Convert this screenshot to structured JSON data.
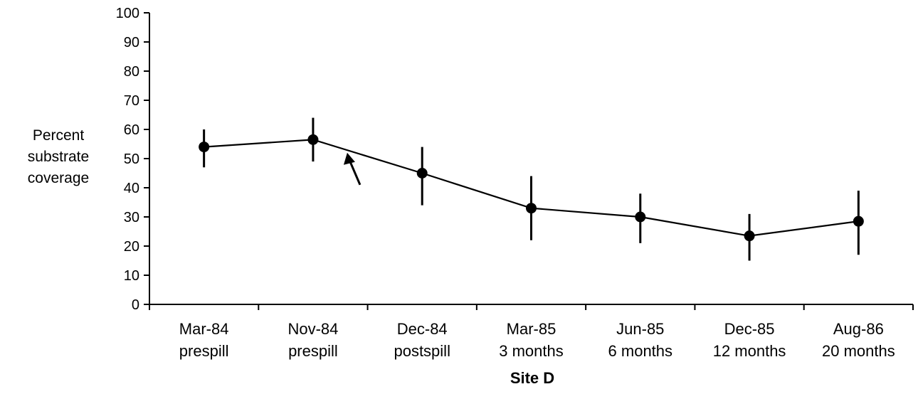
{
  "chart_data": {
    "type": "line",
    "title": "",
    "ylabel_lines": [
      "Percent",
      "substrate",
      "coverage"
    ],
    "xlabel": "Site  D",
    "ylim": [
      0,
      100
    ],
    "yticks": [
      0,
      10,
      20,
      30,
      40,
      50,
      60,
      70,
      80,
      90,
      100
    ],
    "categories": [
      {
        "line1": "Mar-84",
        "line2": "prespill"
      },
      {
        "line1": "Nov-84",
        "line2": "prespill"
      },
      {
        "line1": "Dec-84",
        "line2": "postspill"
      },
      {
        "line1": "Mar-85",
        "line2": "3 months"
      },
      {
        "line1": "Jun-85",
        "line2": "6 months"
      },
      {
        "line1": "Dec-85",
        "line2": "12 months"
      },
      {
        "line1": "Aug-86",
        "line2": "20 months"
      }
    ],
    "series": [
      {
        "values": [
          54,
          56.5,
          45,
          33,
          30,
          23.5,
          28.5
        ],
        "error_low": [
          47,
          49,
          34,
          22,
          21,
          15,
          17
        ],
        "error_high": [
          60,
          64,
          54,
          44,
          38,
          31,
          39
        ],
        "color": "#000000"
      }
    ],
    "annotations": [
      {
        "type": "arrow",
        "points_to": "line segment just after Nov-84 (spill)"
      }
    ],
    "grid": false
  }
}
